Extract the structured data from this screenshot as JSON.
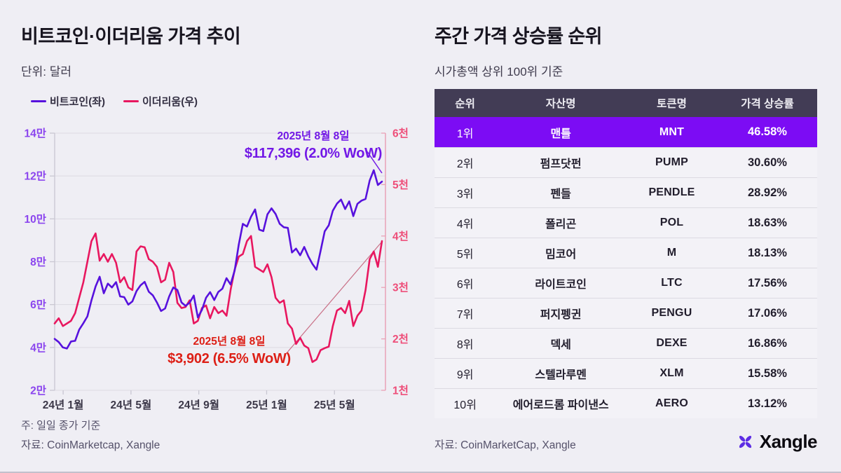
{
  "left": {
    "title": "비트코인·이더리움 가격 추이",
    "subtitle": "단위: 달러",
    "note": "주: 일일 종가 기준",
    "source": "자료: CoinMarketcap, Xangle",
    "legend": [
      {
        "label": "비트코인(좌)",
        "color": "#5711dd"
      },
      {
        "label": "이더리움(우)",
        "color": "#e8175f"
      }
    ]
  },
  "right": {
    "title": "주간 가격 상승률 순위",
    "subtitle": "시가총액 상위 100위 기준",
    "source": "자료: CoinMarketCap, Xangle"
  },
  "brand": {
    "name": "Xangle",
    "icon": "xangle-pinwheel",
    "icon_color": "#5d2de4"
  },
  "chart_data": {
    "type": "line",
    "title": "비트코인·이더리움 가격 추이",
    "unit": "달러",
    "x_tick_labels": [
      "24년 1월",
      "24년 5월",
      "24년 9월",
      "25년 1월",
      "25년 5월"
    ],
    "x_tick_months": [
      0.5,
      4.5,
      8.5,
      12.5,
      16.5
    ],
    "x_range_months": [
      0,
      19.3
    ],
    "grid": "horizontal",
    "left_axis": {
      "label_color": "#8b45ee",
      "axis_color": "#c9c7d2",
      "range": [
        20000,
        140000
      ],
      "tick_labels_top_to_bottom": [
        "14만",
        "12만",
        "10만",
        "8만",
        "6만",
        "4만",
        "2만"
      ]
    },
    "right_axis": {
      "label_color": "#ee4e79",
      "axis_color": "#e9a2b6",
      "range": [
        1000,
        6000
      ],
      "tick_labels_top_to_bottom": [
        "6천",
        "5천",
        "4천",
        "3천",
        "2천",
        "1천"
      ]
    },
    "series": [
      {
        "name": "이더리움(우)",
        "axis": "right",
        "color": "#e8175f",
        "values": [
          2300,
          2400,
          2250,
          2300,
          2350,
          2500,
          2800,
          3100,
          3500,
          3900,
          4050,
          3520,
          3650,
          3500,
          3650,
          3480,
          3100,
          3200,
          3000,
          2950,
          3700,
          3800,
          3780,
          3550,
          3500,
          3400,
          3100,
          3150,
          3480,
          3300,
          2700,
          2600,
          2620,
          2750,
          2300,
          2350,
          2600,
          2650,
          2400,
          2620,
          2500,
          2550,
          2450,
          2950,
          3350,
          3600,
          3650,
          3900,
          4000,
          3400,
          3350,
          3300,
          3450,
          3200,
          2800,
          2700,
          2750,
          2300,
          2200,
          1900,
          2020,
          1870,
          1820,
          1550,
          1600,
          1780,
          1820,
          1850,
          2250,
          2550,
          2600,
          2500,
          2740,
          2250,
          2450,
          2550,
          2950,
          3550,
          3700,
          3400,
          3902
        ]
      },
      {
        "name": "비트코인(좌)",
        "axis": "left",
        "color": "#5711dd",
        "values": [
          44000,
          42500,
          40000,
          39500,
          42800,
          43100,
          48300,
          51300,
          54500,
          62000,
          68500,
          73000,
          65300,
          69800,
          68000,
          70500,
          63800,
          63500,
          60000,
          61500,
          66300,
          69000,
          70600,
          66000,
          64300,
          61000,
          57000,
          58200,
          63800,
          68000,
          66800,
          61000,
          59400,
          60900,
          64200,
          54000,
          57500,
          63200,
          65800,
          62100,
          65900,
          67400,
          72300,
          69400,
          76000,
          88000,
          97700,
          96400,
          101000,
          104400,
          95000,
          94300,
          102100,
          104900,
          102300,
          97700,
          96100,
          95800,
          84300,
          86100,
          83000,
          86900,
          82500,
          79000,
          76300,
          85000,
          94200,
          97000,
          103800,
          107100,
          109000,
          104600,
          108200,
          101300,
          107000,
          108500,
          109300,
          117900,
          122700,
          115800,
          117396
        ]
      }
    ],
    "annotations": [
      {
        "series": "비트코인",
        "date": "2025년 8월 8일",
        "value_label": "$117,396 (2.0% WoW)",
        "value": 117396,
        "color": "#7218e6"
      },
      {
        "series": "이더리움",
        "date": "2025년 8월 8일",
        "value_label": "$3,902 (6.5% WoW)",
        "value": 3902,
        "color": "#dd1f16"
      }
    ]
  },
  "table": {
    "header_bg": "#423c55",
    "highlight_bg": "#7c0cf4",
    "headers": [
      "순위",
      "자산명",
      "토큰명",
      "가격 상승률"
    ],
    "rows": [
      {
        "rank": "1위",
        "name": "맨틀",
        "token": "MNT",
        "change": "46.58%",
        "highlight": true
      },
      {
        "rank": "2위",
        "name": "펌프닷펀",
        "token": "PUMP",
        "change": "30.60%",
        "highlight": false
      },
      {
        "rank": "3위",
        "name": "펜들",
        "token": "PENDLE",
        "change": "28.92%",
        "highlight": false
      },
      {
        "rank": "4위",
        "name": "폴리곤",
        "token": "POL",
        "change": "18.63%",
        "highlight": false
      },
      {
        "rank": "5위",
        "name": "밈코어",
        "token": "M",
        "change": "18.13%",
        "highlight": false
      },
      {
        "rank": "6위",
        "name": "라이트코인",
        "token": "LTC",
        "change": "17.56%",
        "highlight": false
      },
      {
        "rank": "7위",
        "name": "퍼지펭귄",
        "token": "PENGU",
        "change": "17.06%",
        "highlight": false
      },
      {
        "rank": "8위",
        "name": "덱세",
        "token": "DEXE",
        "change": "16.86%",
        "highlight": false
      },
      {
        "rank": "9위",
        "name": "스텔라루멘",
        "token": "XLM",
        "change": "15.58%",
        "highlight": false
      },
      {
        "rank": "10위",
        "name": "에어로드롬 파이낸스",
        "token": "AERO",
        "change": "13.12%",
        "highlight": false
      }
    ]
  }
}
